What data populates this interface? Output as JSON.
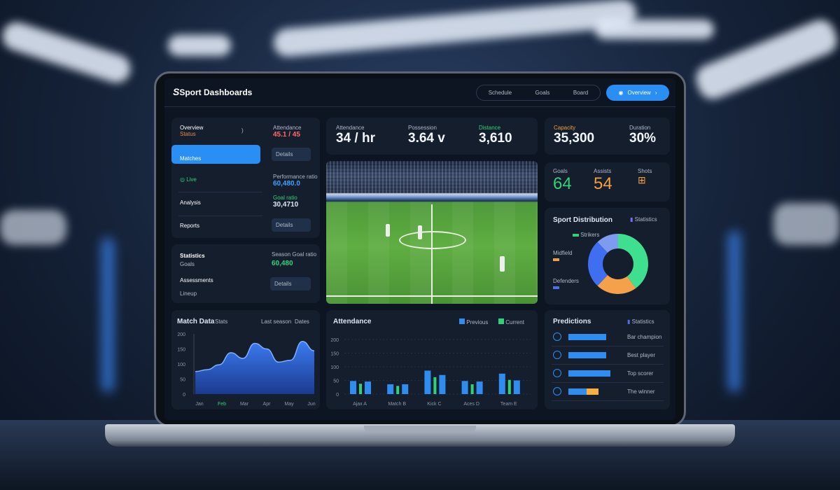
{
  "app": {
    "title": "Sport Dashboards",
    "logo_letter": "S"
  },
  "header": {
    "pills": [
      "Schedule",
      "Goals",
      "Board"
    ],
    "primary_button": "Overview"
  },
  "sidebar": {
    "items": [
      {
        "label": "Overview",
        "sub": "Status",
        "sub_color": "#e08a4f"
      },
      {
        "label": "Matches",
        "selected": true
      },
      {
        "label": "Live",
        "color": "#2fd27a"
      },
      {
        "label": "Analysis"
      },
      {
        "label": "Reports"
      }
    ],
    "stats": [
      {
        "label": "Attendance",
        "value": "45.1 / 45",
        "color": "#ff6b6b"
      },
      {
        "label": "Performance ratio",
        "value": "60,480.0",
        "color": "#3ea0ff"
      },
      {
        "label": "Goal ratio",
        "value": "30,4710",
        "label_color": "#2fd27a",
        "color": "#f2f5fa"
      }
    ],
    "buttons": [
      "Details",
      "Details"
    ]
  },
  "sidebar2": {
    "items": [
      "Statistics",
      "Goals",
      "Assessments",
      "Lineup"
    ],
    "stat_label": "Season Goal ratio",
    "stat_value": "60,480",
    "stat_color": "#2fd27a",
    "button": "Details"
  },
  "top_stats": [
    {
      "label": "Attendance",
      "value": "34 / hr"
    },
    {
      "label": "Possession",
      "value": "3.64 v"
    },
    {
      "label": "Distance",
      "value": "3,610",
      "label_color": "#2fd27a"
    }
  ],
  "right_stats": [
    {
      "label": "Capacity",
      "value": "35,300",
      "label_color": "#f0a040"
    },
    {
      "label": "Duration",
      "value": "30%"
    }
  ],
  "kpis": [
    {
      "label": "Goals",
      "value": "64",
      "color": "#2fd27a"
    },
    {
      "label": "Assists",
      "value": "54",
      "color": "#f0a040"
    },
    {
      "label": "Shots",
      "value": "",
      "color": "#f0a040"
    }
  ],
  "donut": {
    "title": "Sport Distribution",
    "badge": "Statistics",
    "legend": [
      {
        "label": "Strikers",
        "color": "#2fd27a"
      },
      {
        "label": "Midfield",
        "color": "#f0a040"
      },
      {
        "label": "Defenders",
        "color": "#4b6ff0"
      }
    ],
    "slices": [
      {
        "value": 40,
        "color": "#3ee08f"
      },
      {
        "value": 22,
        "color": "#f5a04a"
      },
      {
        "value": 26,
        "color": "#3f6ff0"
      },
      {
        "value": 12,
        "color": "#7d9cf0"
      }
    ]
  },
  "area_chart": {
    "title": "Match Data",
    "subtitle": "Stats",
    "legend": "Last season",
    "legend2": "Dates",
    "yticks": [
      "0",
      "50",
      "100",
      "150",
      "200"
    ],
    "xticks": [
      "Jan",
      "Feb",
      "Mar",
      "Apr",
      "May",
      "Jun"
    ],
    "values": [
      60,
      65,
      78,
      110,
      95,
      135,
      120,
      85,
      90,
      140,
      115
    ],
    "ylim": [
      0,
      160
    ],
    "color": "#3b7bf0"
  },
  "bar_chart": {
    "title": "Attendance",
    "legend": [
      {
        "label": "Previous",
        "color": "#2f8df0"
      },
      {
        "label": "Current",
        "color": "#2fd27a"
      }
    ],
    "yticks": [
      "0",
      "50",
      "100",
      "150",
      "200"
    ],
    "ylim": [
      0,
      200
    ],
    "categories": [
      "Ajax A",
      "Match B",
      "Kick C",
      "Aces D",
      "Team E"
    ],
    "series": [
      {
        "values": [
          48,
          36,
          86,
          48,
          75
        ]
      },
      {
        "values": [
          38,
          30,
          62,
          36,
          52
        ]
      },
      {
        "values": [
          46,
          36,
          70,
          46,
          50
        ]
      }
    ]
  },
  "list_panel": {
    "title": "Predictions",
    "badge": "Statistics",
    "rows": [
      {
        "label": "Bar champion",
        "fill": 0.45
      },
      {
        "label": "Best player",
        "fill": 0.45
      },
      {
        "label": "Top scorer",
        "fill": 0.5
      },
      {
        "label": "The winner",
        "fill": 0.22,
        "fill2": 0.14
      }
    ]
  }
}
